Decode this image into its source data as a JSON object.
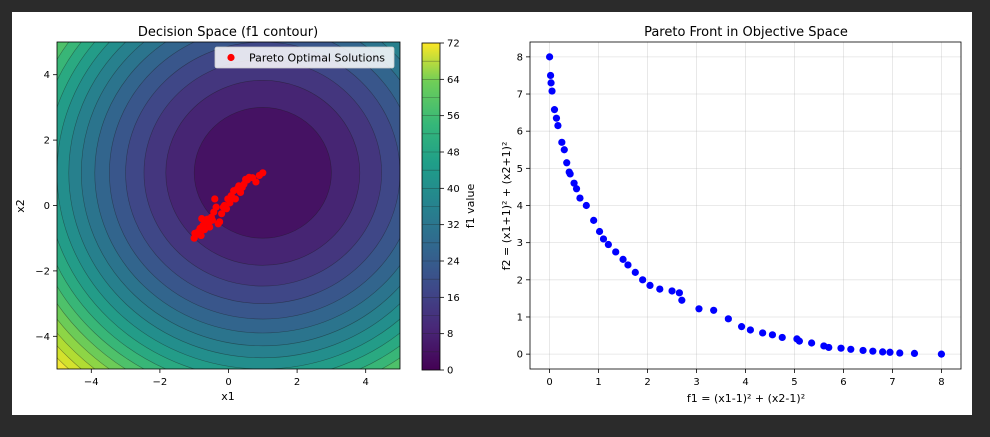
{
  "chart_data": [
    {
      "type": "heatmap",
      "title": "Decision Space (f1 contour)",
      "xlabel": "x1",
      "ylabel": "x2",
      "xlim": [
        -5,
        5
      ],
      "ylim": [
        -5,
        5
      ],
      "xticks": [
        -4,
        -2,
        0,
        2,
        4
      ],
      "yticks": [
        -4,
        -2,
        0,
        2,
        4
      ],
      "contour_function": "f1 = (x1-1)^2 + (x2-1)^2",
      "contour_levels": [
        0,
        4,
        8,
        12,
        16,
        20,
        24,
        28,
        32,
        36,
        40,
        44,
        48,
        52,
        56,
        60,
        64,
        68,
        72
      ],
      "colormap": "viridis",
      "colorbar": {
        "label": "f1 value",
        "range": [
          0,
          72
        ],
        "ticks": [
          0,
          8,
          16,
          24,
          32,
          40,
          48,
          56,
          64,
          72
        ]
      },
      "legend": {
        "position": "top-right",
        "entries": [
          "Pareto Optimal Solutions"
        ]
      },
      "series": [
        {
          "name": "Pareto Optimal Solutions",
          "color": "#ff0000",
          "points": [
            [
              -1.0,
              -1.0
            ],
            [
              -0.98,
              -0.85
            ],
            [
              -0.93,
              -0.88
            ],
            [
              -0.88,
              -0.8
            ],
            [
              -0.83,
              -0.7
            ],
            [
              -0.8,
              -0.92
            ],
            [
              -0.78,
              -0.4
            ],
            [
              -0.74,
              -0.6
            ],
            [
              -0.7,
              -0.74
            ],
            [
              -0.66,
              -0.49
            ],
            [
              -0.62,
              -0.42
            ],
            [
              -0.58,
              -0.55
            ],
            [
              -0.55,
              -0.66
            ],
            [
              -0.5,
              -0.36
            ],
            [
              -0.47,
              -0.45
            ],
            [
              -0.43,
              -0.2
            ],
            [
              -0.4,
              0.2
            ],
            [
              -0.36,
              -0.05
            ],
            [
              -0.3,
              -0.56
            ],
            [
              -0.26,
              -0.5
            ],
            [
              -0.2,
              -0.25
            ],
            [
              -0.15,
              -0.05
            ],
            [
              -0.12,
              0.0
            ],
            [
              -0.06,
              -0.1
            ],
            [
              -0.02,
              0.2
            ],
            [
              0.04,
              0.08
            ],
            [
              0.08,
              0.3
            ],
            [
              0.1,
              0.25
            ],
            [
              0.15,
              0.45
            ],
            [
              0.2,
              0.2
            ],
            [
              0.25,
              0.5
            ],
            [
              0.3,
              0.6
            ],
            [
              0.35,
              0.4
            ],
            [
              0.4,
              0.55
            ],
            [
              0.45,
              0.65
            ],
            [
              0.5,
              0.8
            ],
            [
              0.55,
              0.78
            ],
            [
              0.6,
              0.86
            ],
            [
              0.7,
              0.85
            ],
            [
              0.8,
              0.72
            ],
            [
              0.9,
              0.92
            ],
            [
              1.0,
              1.0
            ]
          ]
        }
      ]
    },
    {
      "type": "scatter",
      "title": "Pareto Front in Objective Space",
      "xlabel": "f1 = (x1-1)² + (x2-1)²",
      "ylabel": "f2 = (x1+1)² + (x2+1)²",
      "xlim": [
        -0.4,
        8.4
      ],
      "ylim": [
        -0.4,
        8.4
      ],
      "xticks": [
        0,
        1,
        2,
        3,
        4,
        5,
        6,
        7,
        8
      ],
      "yticks": [
        0,
        1,
        2,
        3,
        4,
        5,
        6,
        7,
        8
      ],
      "grid": true,
      "series": [
        {
          "color": "#0000ff",
          "points": [
            [
              0.0,
              8.0
            ],
            [
              0.02,
              7.5
            ],
            [
              0.03,
              7.3
            ],
            [
              0.05,
              7.08
            ],
            [
              0.1,
              6.58
            ],
            [
              0.14,
              6.35
            ],
            [
              0.17,
              6.15
            ],
            [
              0.25,
              5.7
            ],
            [
              0.3,
              5.5
            ],
            [
              0.35,
              5.15
            ],
            [
              0.4,
              4.9
            ],
            [
              0.42,
              4.85
            ],
            [
              0.5,
              4.6
            ],
            [
              0.55,
              4.45
            ],
            [
              0.62,
              4.2
            ],
            [
              0.75,
              4.0
            ],
            [
              0.9,
              3.6
            ],
            [
              1.02,
              3.3
            ],
            [
              1.1,
              3.1
            ],
            [
              1.2,
              2.95
            ],
            [
              1.35,
              2.75
            ],
            [
              1.5,
              2.55
            ],
            [
              1.6,
              2.4
            ],
            [
              1.75,
              2.2
            ],
            [
              1.9,
              2.0
            ],
            [
              2.05,
              1.85
            ],
            [
              2.25,
              1.75
            ],
            [
              2.5,
              1.7
            ],
            [
              2.65,
              1.65
            ],
            [
              2.7,
              1.45
            ],
            [
              3.05,
              1.22
            ],
            [
              3.35,
              1.18
            ],
            [
              3.65,
              0.95
            ],
            [
              3.92,
              0.74
            ],
            [
              4.1,
              0.65
            ],
            [
              4.35,
              0.57
            ],
            [
              4.55,
              0.52
            ],
            [
              4.75,
              0.45
            ],
            [
              5.05,
              0.41
            ],
            [
              5.1,
              0.35
            ],
            [
              5.35,
              0.3
            ],
            [
              5.6,
              0.22
            ],
            [
              5.7,
              0.18
            ],
            [
              5.95,
              0.16
            ],
            [
              6.15,
              0.13
            ],
            [
              6.4,
              0.1
            ],
            [
              6.6,
              0.08
            ],
            [
              6.8,
              0.06
            ],
            [
              6.95,
              0.05
            ],
            [
              7.15,
              0.03
            ],
            [
              7.45,
              0.02
            ],
            [
              8.0,
              0.0
            ]
          ]
        }
      ]
    }
  ]
}
